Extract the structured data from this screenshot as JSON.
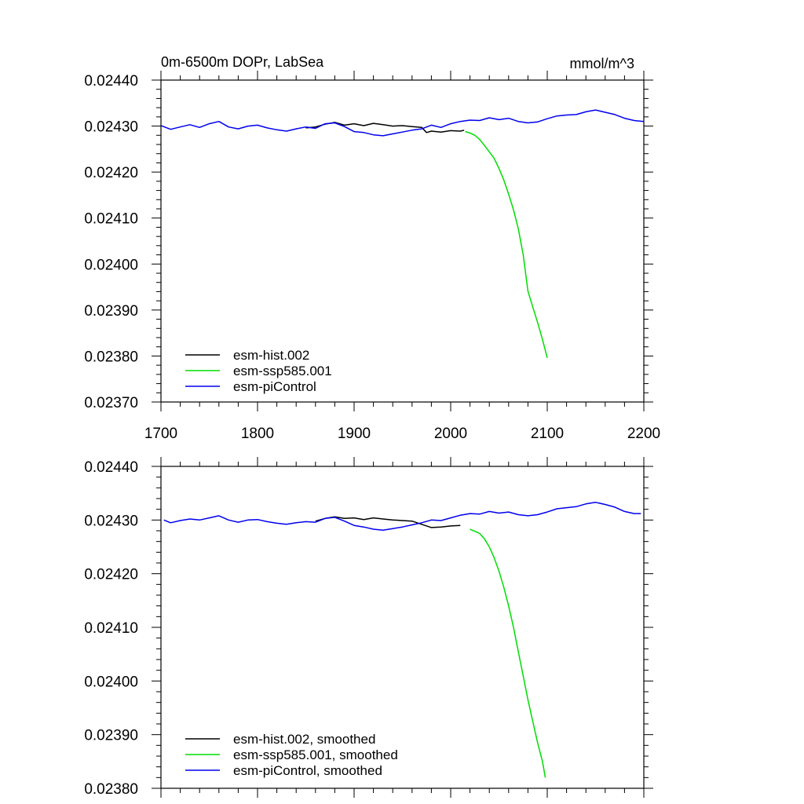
{
  "chart_data": [
    {
      "type": "line",
      "title": "0m-6500m DOPr, LabSea",
      "units": "mmol/m^3",
      "xlabel": "",
      "ylabel": "",
      "xlim": [
        1700,
        2200
      ],
      "ylim": [
        0.0237,
        0.0244
      ],
      "x_ticks": [
        "1700",
        "1800",
        "1900",
        "2000",
        "2100",
        "2200"
      ],
      "y_ticks": [
        "0.02370",
        "0.02380",
        "0.02390",
        "0.02400",
        "0.02410",
        "0.02420",
        "0.02430",
        "0.02440"
      ],
      "legend_position": "bottom-left",
      "series": [
        {
          "name": "esm-hist.002",
          "color": "#000000",
          "x": [
            1850,
            1860,
            1870,
            1880,
            1890,
            1900,
            1910,
            1920,
            1930,
            1940,
            1950,
            1960,
            1970,
            1975,
            1980,
            1990,
            2000,
            2010,
            2014
          ],
          "y": [
            0.024296,
            0.024298,
            0.024304,
            0.024308,
            0.024302,
            0.024305,
            0.024301,
            0.024306,
            0.024303,
            0.0243,
            0.024301,
            0.024299,
            0.024297,
            0.024286,
            0.024289,
            0.024287,
            0.02429,
            0.024289,
            0.024291
          ]
        },
        {
          "name": "esm-ssp585.001",
          "color": "#00dd00",
          "x": [
            2015,
            2020,
            2025,
            2030,
            2035,
            2040,
            2045,
            2050,
            2055,
            2060,
            2065,
            2070,
            2075,
            2080,
            2085,
            2090,
            2095,
            2100
          ],
          "y": [
            0.024288,
            0.024285,
            0.02428,
            0.024271,
            0.024258,
            0.024244,
            0.02423,
            0.024208,
            0.024183,
            0.024152,
            0.024118,
            0.024077,
            0.024021,
            0.023941,
            0.023907,
            0.023873,
            0.023836,
            0.023796
          ]
        },
        {
          "name": "esm-piControl",
          "color": "#0000ee",
          "x": [
            1700,
            1710,
            1720,
            1730,
            1740,
            1750,
            1760,
            1770,
            1780,
            1790,
            1800,
            1810,
            1820,
            1830,
            1840,
            1850,
            1860,
            1870,
            1880,
            1890,
            1900,
            1910,
            1920,
            1930,
            1940,
            1950,
            1960,
            1970,
            1980,
            1990,
            2000,
            2010,
            2020,
            2030,
            2040,
            2050,
            2060,
            2070,
            2080,
            2090,
            2100,
            2110,
            2120,
            2130,
            2140,
            2150,
            2160,
            2170,
            2180,
            2190,
            2200
          ],
          "y": [
            0.024301,
            0.024293,
            0.024298,
            0.024303,
            0.024297,
            0.024305,
            0.02431,
            0.024298,
            0.024294,
            0.0243,
            0.024302,
            0.024296,
            0.024292,
            0.024289,
            0.024294,
            0.024298,
            0.024295,
            0.024305,
            0.024307,
            0.024299,
            0.024288,
            0.024286,
            0.024281,
            0.024279,
            0.024283,
            0.024287,
            0.024291,
            0.024294,
            0.024302,
            0.024297,
            0.024305,
            0.02431,
            0.024313,
            0.024312,
            0.024318,
            0.024314,
            0.024317,
            0.02431,
            0.024307,
            0.024309,
            0.024316,
            0.024322,
            0.024324,
            0.024325,
            0.024331,
            0.024335,
            0.02433,
            0.024325,
            0.024317,
            0.024312,
            0.02431
          ]
        }
      ]
    },
    {
      "type": "line",
      "title": "",
      "xlabel": "",
      "ylabel": "",
      "xlim": [
        1700,
        2200
      ],
      "ylim": [
        0.0238,
        0.0244
      ],
      "y_ticks": [
        "0.02380",
        "0.02390",
        "0.02400",
        "0.02410",
        "0.02420",
        "0.02430",
        "0.02440"
      ],
      "legend_position": "bottom-left",
      "series": [
        {
          "name": "esm-hist.002, smoothed",
          "color": "#000000",
          "x": [
            1860,
            1870,
            1880,
            1890,
            1900,
            1910,
            1920,
            1930,
            1940,
            1950,
            1960,
            1970,
            1980,
            1990,
            2000,
            2010
          ],
          "y": [
            0.024298,
            0.024303,
            0.024306,
            0.024303,
            0.024304,
            0.024301,
            0.024304,
            0.024302,
            0.0243,
            0.024299,
            0.024298,
            0.024292,
            0.024286,
            0.024287,
            0.024289,
            0.02429
          ]
        },
        {
          "name": "esm-ssp585.001, smoothed",
          "color": "#00dd00",
          "x": [
            2020,
            2025,
            2030,
            2035,
            2040,
            2045,
            2050,
            2055,
            2060,
            2065,
            2070,
            2075,
            2080,
            2085,
            2090,
            2095,
            2098
          ],
          "y": [
            0.024283,
            0.024279,
            0.024275,
            0.024265,
            0.02425,
            0.02423,
            0.024205,
            0.024175,
            0.02414,
            0.0241,
            0.024055,
            0.02401,
            0.023965,
            0.023925,
            0.023885,
            0.02385,
            0.02382
          ]
        },
        {
          "name": "esm-piControl, smoothed",
          "color": "#0000ee",
          "x": [
            1703,
            1710,
            1720,
            1730,
            1740,
            1750,
            1760,
            1770,
            1780,
            1790,
            1800,
            1810,
            1820,
            1830,
            1840,
            1850,
            1860,
            1870,
            1880,
            1890,
            1900,
            1910,
            1920,
            1930,
            1940,
            1950,
            1960,
            1970,
            1980,
            1990,
            2000,
            2010,
            2020,
            2030,
            2040,
            2050,
            2060,
            2070,
            2080,
            2090,
            2100,
            2110,
            2120,
            2130,
            2140,
            2150,
            2160,
            2170,
            2180,
            2190,
            2197
          ],
          "y": [
            0.0243,
            0.024295,
            0.024299,
            0.024302,
            0.0243,
            0.024304,
            0.024308,
            0.0243,
            0.024296,
            0.0243,
            0.024301,
            0.024297,
            0.024294,
            0.024292,
            0.024295,
            0.024297,
            0.024296,
            0.024303,
            0.024305,
            0.024298,
            0.02429,
            0.024287,
            0.024283,
            0.024281,
            0.024284,
            0.024287,
            0.024291,
            0.024295,
            0.0243,
            0.024299,
            0.024304,
            0.024309,
            0.024312,
            0.024311,
            0.024316,
            0.024313,
            0.024315,
            0.02431,
            0.024308,
            0.02431,
            0.024315,
            0.024321,
            0.024323,
            0.024325,
            0.02433,
            0.024333,
            0.024329,
            0.024324,
            0.024316,
            0.024312,
            0.024312
          ]
        }
      ]
    }
  ]
}
